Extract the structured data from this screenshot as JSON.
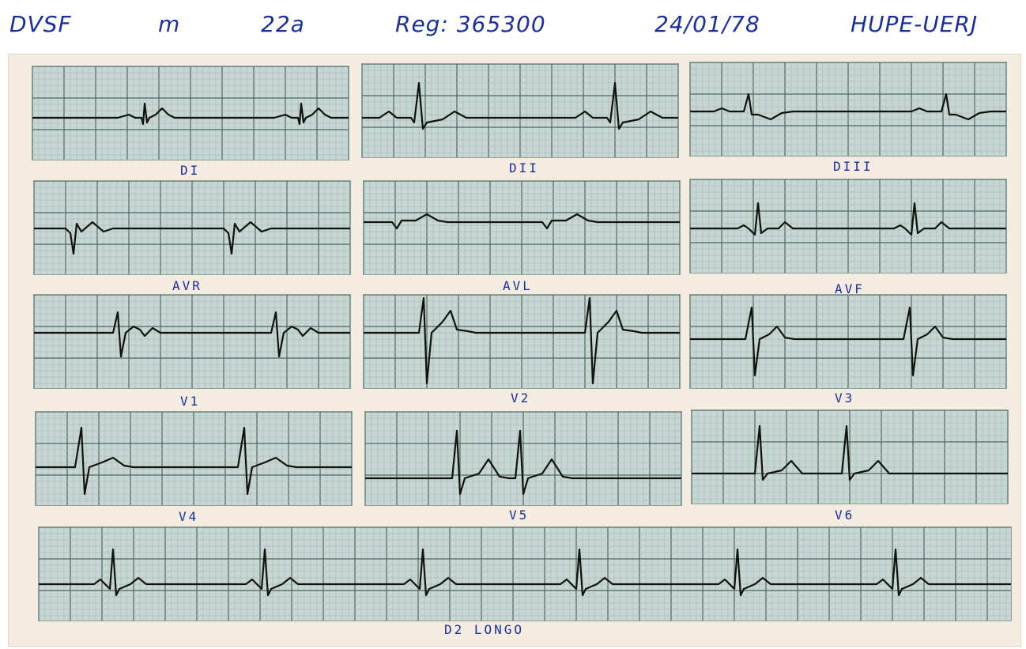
{
  "header": {
    "patient": "DVSF",
    "sex": "m",
    "age": "22a",
    "registry": "Reg: 365300",
    "date": "24/01/78",
    "institution": "HUPE-UERJ"
  },
  "leads": [
    {
      "id": "di",
      "label": "DI",
      "kind": "di"
    },
    {
      "id": "dii",
      "label": "DII",
      "kind": "dii"
    },
    {
      "id": "diii",
      "label": "DIII",
      "kind": "diii"
    },
    {
      "id": "avr",
      "label": "AVR",
      "kind": "avr"
    },
    {
      "id": "avl",
      "label": "AVL",
      "kind": "avl"
    },
    {
      "id": "avf",
      "label": "AVF",
      "kind": "avf"
    },
    {
      "id": "v1",
      "label": "V1",
      "kind": "v1"
    },
    {
      "id": "v2",
      "label": "V2",
      "kind": "v2"
    },
    {
      "id": "v3",
      "label": "V3",
      "kind": "v3"
    },
    {
      "id": "v4",
      "label": "V4",
      "kind": "v4"
    },
    {
      "id": "v5",
      "label": "V5",
      "kind": "v5"
    },
    {
      "id": "v6",
      "label": "V6",
      "kind": "v6"
    },
    {
      "id": "d2long",
      "label": "D2 LONGO",
      "kind": "d2long"
    }
  ],
  "colors": {
    "ink": "#1a2f9e",
    "paper": "#f4ece0",
    "grid_bg": "#c6d6d2",
    "grid_minor": "#9db2ae",
    "grid_major": "#4f6662",
    "trace": "#111111"
  }
}
